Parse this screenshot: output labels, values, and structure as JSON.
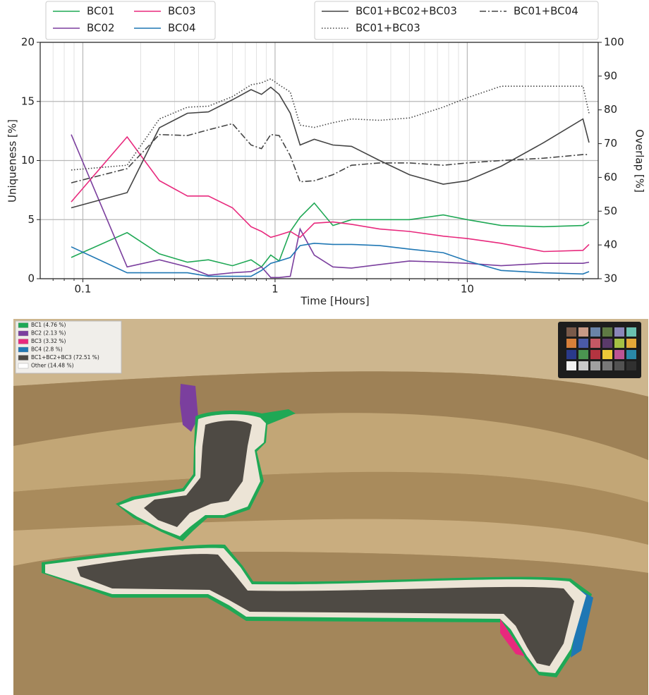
{
  "chart_data": {
    "type": "line",
    "xlabel": "Time [Hours]",
    "ylabel": "Uniqueness [%]",
    "y2label": "Overlap [%]",
    "xscale": "log",
    "grid": true,
    "xlim": [
      0.06,
      48
    ],
    "xticks": [
      0.1,
      1,
      10
    ],
    "xminorticks": [
      0.07,
      0.08,
      0.09,
      0.2,
      0.3,
      0.4,
      0.5,
      0.6,
      0.7,
      0.8,
      0.9,
      2,
      3,
      4,
      5,
      6,
      7,
      8,
      9,
      20,
      30,
      40
    ],
    "ylim": [
      0,
      20
    ],
    "yticks": [
      0,
      5,
      10,
      15,
      20
    ],
    "y2lim": [
      30,
      100
    ],
    "y2ticks": [
      30,
      40,
      50,
      60,
      70,
      80,
      90,
      100
    ],
    "x": [
      0.087,
      0.17,
      0.25,
      0.35,
      0.45,
      0.6,
      0.75,
      0.85,
      0.95,
      1.05,
      1.2,
      1.35,
      1.6,
      2,
      2.5,
      3.5,
      5,
      7.5,
      10,
      15,
      25,
      40,
      43
    ],
    "series": [
      {
        "name": "BC01",
        "color": "#1fa855",
        "style": "solid",
        "values": [
          1.8,
          3.9,
          2.1,
          1.4,
          1.6,
          1.1,
          1.6,
          1.0,
          2.0,
          1.5,
          4.0,
          5.2,
          6.4,
          4.5,
          5.0,
          5.0,
          5.0,
          5.4,
          5.0,
          4.5,
          4.4,
          4.5,
          4.8
        ]
      },
      {
        "name": "BC02",
        "color": "#7b3f9e",
        "style": "solid",
        "values": [
          12.2,
          1.0,
          1.6,
          1.0,
          0.3,
          0.5,
          0.6,
          1.0,
          0.1,
          0.1,
          0.2,
          4.2,
          2.0,
          1.0,
          0.9,
          1.2,
          1.5,
          1.4,
          1.3,
          1.1,
          1.3,
          1.3,
          1.4
        ]
      },
      {
        "name": "BC03",
        "color": "#e8297d",
        "style": "solid",
        "values": [
          6.5,
          12.0,
          8.3,
          7.0,
          7.0,
          6.0,
          4.4,
          4.0,
          3.5,
          3.7,
          4.0,
          3.5,
          4.7,
          4.8,
          4.6,
          4.2,
          4.0,
          3.6,
          3.4,
          3.0,
          2.3,
          2.4,
          2.9
        ]
      },
      {
        "name": "BC04",
        "color": "#1f77b4",
        "style": "solid",
        "values": [
          2.7,
          0.5,
          0.5,
          0.5,
          0.2,
          0.2,
          0.2,
          0.7,
          1.3,
          1.5,
          1.8,
          2.8,
          3.0,
          2.9,
          2.9,
          2.8,
          2.5,
          2.2,
          1.5,
          0.7,
          0.5,
          0.4,
          0.6
        ]
      },
      {
        "name": "BC01+BC02+BC03",
        "color": "#444444",
        "style": "solid",
        "axis": "y2",
        "values": [
          51,
          55.5,
          74.7,
          79,
          79.4,
          83,
          86,
          84.6,
          86.7,
          84.6,
          79,
          69.6,
          71.3,
          69.6,
          69.2,
          65,
          60.8,
          58,
          59,
          63.3,
          70.3,
          77.3,
          70.3
        ]
      },
      {
        "name": "BC01+BC03",
        "color": "#444444",
        "style": "dotted",
        "axis": "y2",
        "values": [
          62.2,
          63.6,
          77.3,
          80.8,
          81.1,
          83.9,
          87.4,
          88,
          89.2,
          87.4,
          85.3,
          75.5,
          74.8,
          76.2,
          77.3,
          76.9,
          77.6,
          80.8,
          83.6,
          87,
          87,
          87,
          79
        ]
      },
      {
        "name": "BC01+BC04",
        "color": "#444444",
        "style": "dashdot",
        "axis": "y2",
        "values": [
          58.4,
          62.6,
          72.7,
          72.4,
          74.1,
          75.9,
          69.6,
          68.5,
          72.7,
          72.4,
          66.4,
          58.7,
          59,
          60.8,
          63.6,
          64.3,
          64.3,
          63.6,
          64.3,
          65,
          65.7,
          66.75,
          66.75
        ]
      }
    ]
  },
  "photo": {
    "legend": [
      {
        "label": "BC1 (4.76 %)",
        "color": "#1fa855"
      },
      {
        "label": "BC2 (2.13 %)",
        "color": "#7b3f9e"
      },
      {
        "label": "BC3 (3.32 %)",
        "color": "#e8297d"
      },
      {
        "label": "BC4 (2.8 %)",
        "color": "#1f77b4"
      },
      {
        "label": "BC1+BC2+BC3 (72.51 %)",
        "color": "#4e4a44"
      },
      {
        "label": "Other (14.48 %)",
        "color": "#ffffff"
      }
    ]
  }
}
